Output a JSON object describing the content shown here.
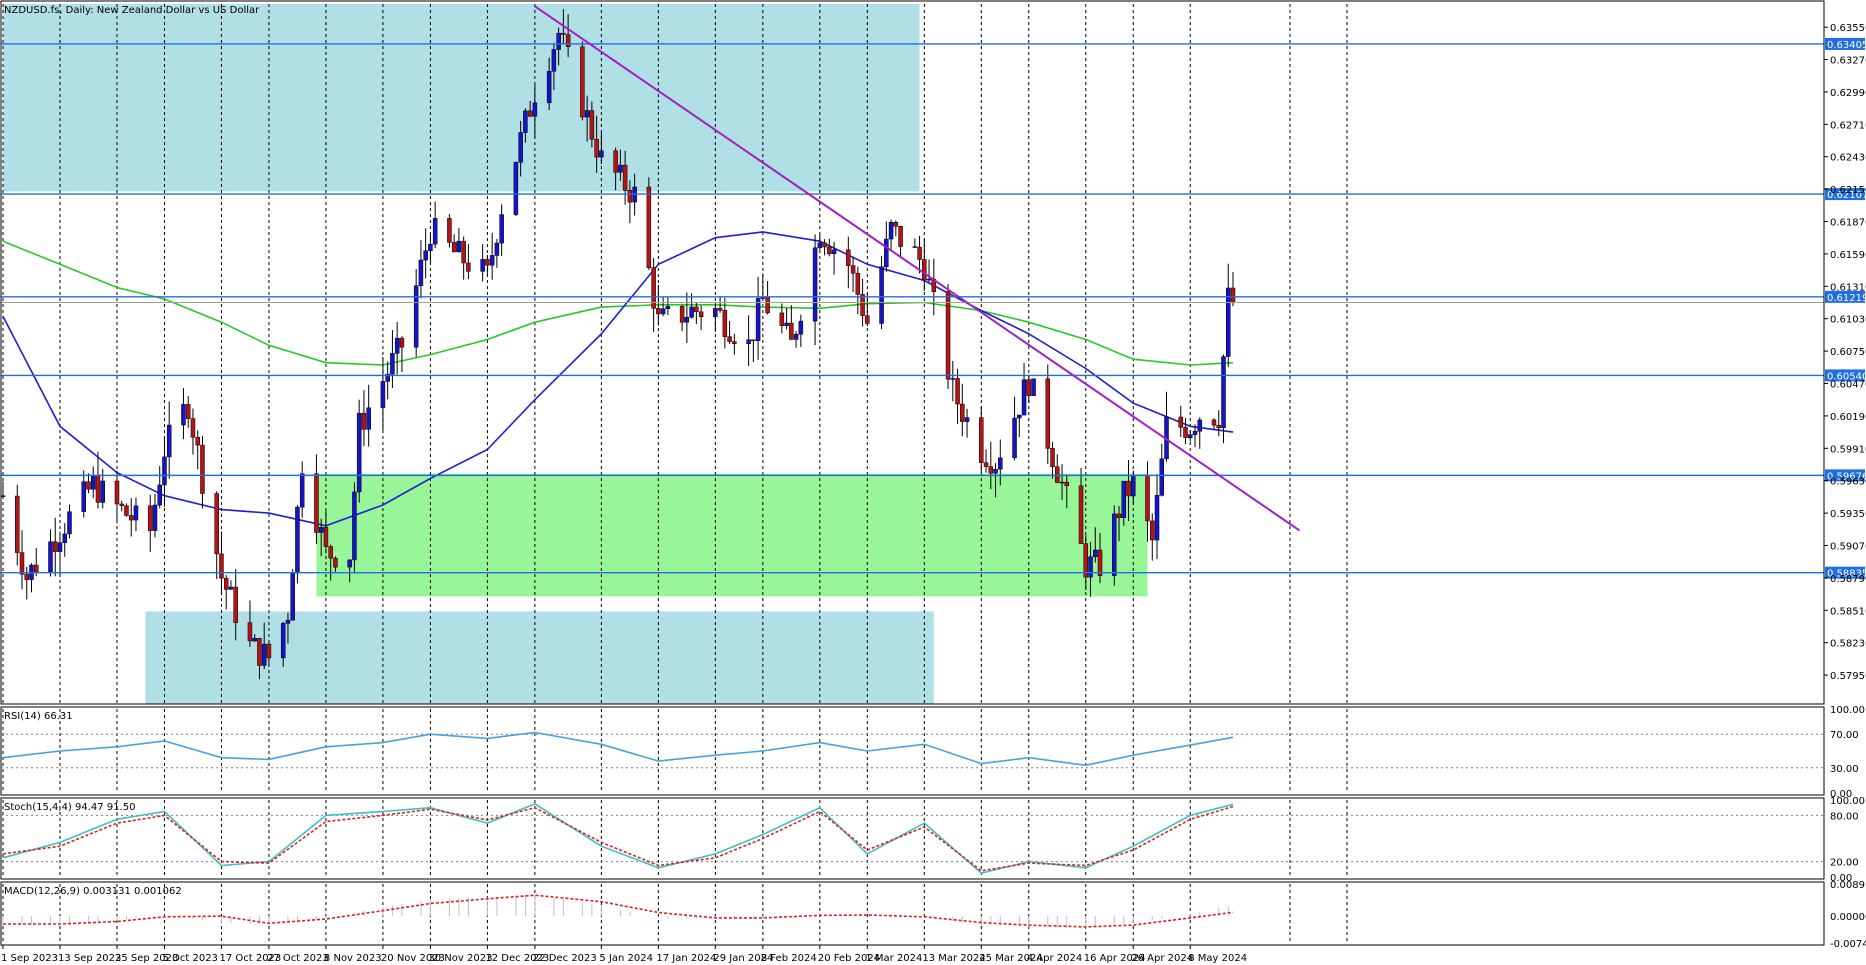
{
  "window": {
    "title": "NZDUSD.fs, Daily:  New Zealand Dollar vs US Dollar"
  },
  "colors": {
    "bull_candle": "#1414c8",
    "bear_candle": "#b41414",
    "ma_fast": "#1e1ed2",
    "ma_slow": "#28c828",
    "trendline": "#a020c8",
    "hline": "#1e6ee6",
    "supply_zone": "#b0dfe5",
    "demand_zone": "#98f598",
    "rsi_line": "#4aa0e0",
    "stoch_main": "#3cc0c8",
    "stoch_signal": "#e02020",
    "macd_hist": "#c0c0c0",
    "macd_signal": "#e02020",
    "tag_bg": "#1e6ee6",
    "current_price_line": "#a0a0a0"
  },
  "price_axis": {
    "ticks": [
      "0.63550",
      "0.63270",
      "0.62990",
      "0.62710",
      "0.62430",
      "0.62150",
      "0.61870",
      "0.61590",
      "0.61310",
      "0.61030",
      "0.60750",
      "0.60470",
      "0.60190",
      "0.59910",
      "0.59630",
      "0.59350",
      "0.59070",
      "0.58790",
      "0.58510",
      "0.58230",
      "0.57950"
    ]
  },
  "horizontal_levels": {
    "tags": [
      "0.63405",
      "0.62107",
      "0.61219",
      "0.60540",
      "0.59676",
      "0.58835"
    ],
    "current_price": "0.61170"
  },
  "date_axis": {
    "labels": [
      "1 Sep 2023",
      "13 Sep 2023",
      "25 Sep 2023",
      "5 Oct 2023",
      "17 Oct 2023",
      "27 Oct 2023",
      "8 Nov 2023",
      "20 Nov 2023",
      "30 Nov 2023",
      "12 Dec 2023",
      "22 Dec 2023",
      "5 Jan 2024",
      "17 Jan 2024",
      "29 Jan 2024",
      "8 Feb 2024",
      "20 Feb 2024",
      "1 Mar 2024",
      "13 Mar 2024",
      "25 Mar 2024",
      "4 Apr 2024",
      "16 Apr 2024",
      "26 Apr 2024",
      "8 May 2024"
    ]
  },
  "rsi": {
    "label": "RSI(14) 66.31",
    "ticks": [
      "100.00",
      "70.00",
      "30.00",
      "0.00"
    ]
  },
  "stoch": {
    "label": "Stoch(15,4,4) 94.47 91.50",
    "ticks": [
      "100.00",
      "80.00",
      "20.00",
      "0.00"
    ]
  },
  "macd": {
    "label": "MACD(12,26,9) 0.003131 0.001062",
    "ticks": [
      "0.008919",
      "0.000000",
      "-0.007467"
    ]
  },
  "chart_data": {
    "type": "candlestick",
    "title": "NZDUSD.fs, Daily:  New Zealand Dollar vs US Dollar",
    "ylim": [
      0.577,
      0.6375
    ],
    "anchors": [
      [
        "1 Sep 2023",
        0.595
      ],
      [
        "6 Sep 2023",
        0.588
      ],
      [
        "13 Sep 2023",
        0.592
      ],
      [
        "20 Sep 2023",
        0.596
      ],
      [
        "25 Sep 2023",
        0.594
      ],
      [
        "2 Oct 2023",
        0.592
      ],
      [
        "5 Oct 2023",
        0.599
      ],
      [
        "10 Oct 2023",
        0.603
      ],
      [
        "17 Oct 2023",
        0.588
      ],
      [
        "23 Oct 2023",
        0.582
      ],
      [
        "27 Oct 2023",
        0.581
      ],
      [
        "31 Oct 2023",
        0.585
      ],
      [
        "3 Nov 2023",
        0.598
      ],
      [
        "8 Nov 2023",
        0.59
      ],
      [
        "13 Nov 2023",
        0.59
      ],
      [
        "15 Nov 2023",
        0.601
      ],
      [
        "20 Nov 2023",
        0.605
      ],
      [
        "24 Nov 2023",
        0.608
      ],
      [
        "30 Nov 2023",
        0.618
      ],
      [
        "5 Dec 2023",
        0.616
      ],
      [
        "12 Dec 2023",
        0.614
      ],
      [
        "15 Dec 2023",
        0.62
      ],
      [
        "22 Dec 2023",
        0.63
      ],
      [
        "27 Dec 2023",
        0.635
      ],
      [
        "5 Jan 2024",
        0.624
      ],
      [
        "12 Jan 2024",
        0.621
      ],
      [
        "17 Jan 2024",
        0.61
      ],
      [
        "24 Jan 2024",
        0.611
      ],
      [
        "29 Jan 2024",
        0.611
      ],
      [
        "5 Feb 2024",
        0.608
      ],
      [
        "8 Feb 2024",
        0.612
      ],
      [
        "14 Feb 2024",
        0.608
      ],
      [
        "20 Feb 2024",
        0.618
      ],
      [
        "26 Feb 2024",
        0.615
      ],
      [
        "1 Mar 2024",
        0.61
      ],
      [
        "6 Mar 2024",
        0.618
      ],
      [
        "13 Mar 2024",
        0.615
      ],
      [
        "19 Mar 2024",
        0.604
      ],
      [
        "25 Mar 2024",
        0.599
      ],
      [
        "28 Mar 2024",
        0.598
      ],
      [
        "4 Apr 2024",
        0.605
      ],
      [
        "11 Apr 2024",
        0.596
      ],
      [
        "16 Apr 2024",
        0.589
      ],
      [
        "19 Apr 2024",
        0.589
      ],
      [
        "24 Apr 2024",
        0.595
      ],
      [
        "26 Apr 2024",
        0.596
      ],
      [
        "30 Apr 2024",
        0.591
      ],
      [
        "3 May 2024",
        0.601
      ],
      [
        "8 May 2024",
        0.601
      ],
      [
        "10 May 2024",
        0.602
      ],
      [
        "14 May 2024",
        0.602
      ],
      [
        "16 May 2024",
        0.612
      ],
      [
        "17 May 2024",
        0.6117
      ]
    ],
    "ma50": [
      [
        "1 Sep 2023",
        0.6105
      ],
      [
        "13 Sep 2023",
        0.601
      ],
      [
        "25 Sep 2023",
        0.597
      ],
      [
        "5 Oct 2023",
        0.595
      ],
      [
        "17 Oct 2023",
        0.5938
      ],
      [
        "27 Oct 2023",
        0.5935
      ],
      [
        "8 Nov 2023",
        0.5924
      ],
      [
        "20 Nov 2023",
        0.5942
      ],
      [
        "30 Nov 2023",
        0.5965
      ],
      [
        "12 Dec 2023",
        0.599
      ],
      [
        "22 Dec 2023",
        0.6033
      ],
      [
        "5 Jan 2024",
        0.609
      ],
      [
        "17 Jan 2024",
        0.615
      ],
      [
        "29 Jan 2024",
        0.6173
      ],
      [
        "8 Feb 2024",
        0.6178
      ],
      [
        "20 Feb 2024",
        0.617
      ],
      [
        "1 Mar 2024",
        0.615
      ],
      [
        "13 Mar 2024",
        0.6136
      ],
      [
        "25 Mar 2024",
        0.611
      ],
      [
        "4 Apr 2024",
        0.609
      ],
      [
        "16 Apr 2024",
        0.606
      ],
      [
        "26 Apr 2024",
        0.603
      ],
      [
        "8 May 2024",
        0.601
      ],
      [
        "17 May 2024",
        0.6005
      ]
    ],
    "ma200": [
      [
        "1 Sep 2023",
        0.617
      ],
      [
        "13 Sep 2023",
        0.615
      ],
      [
        "25 Sep 2023",
        0.613
      ],
      [
        "5 Oct 2023",
        0.612
      ],
      [
        "17 Oct 2023",
        0.61
      ],
      [
        "27 Oct 2023",
        0.608
      ],
      [
        "8 Nov 2023",
        0.6065
      ],
      [
        "20 Nov 2023",
        0.6063
      ],
      [
        "30 Nov 2023",
        0.6072
      ],
      [
        "12 Dec 2023",
        0.6085
      ],
      [
        "22 Dec 2023",
        0.61
      ],
      [
        "5 Jan 2024",
        0.6113
      ],
      [
        "17 Jan 2024",
        0.6115
      ],
      [
        "29 Jan 2024",
        0.6115
      ],
      [
        "8 Feb 2024",
        0.6113
      ],
      [
        "20 Feb 2024",
        0.6112
      ],
      [
        "1 Mar 2024",
        0.6116
      ],
      [
        "13 Mar 2024",
        0.6117
      ],
      [
        "25 Mar 2024",
        0.611
      ],
      [
        "4 Apr 2024",
        0.61
      ],
      [
        "16 Apr 2024",
        0.6085
      ],
      [
        "26 Apr 2024",
        0.6068
      ],
      [
        "8 May 2024",
        0.6063
      ],
      [
        "17 May 2024",
        0.6065
      ]
    ],
    "trendline": [
      [
        "22 Dec 2023",
        0.6373
      ],
      [
        "31 May 2024",
        0.592
      ]
    ],
    "supply_zones": [
      {
        "from": "1 Sep 2023",
        "to": "12 Mar 2024",
        "top": 0.6375,
        "bottom": 0.6213
      },
      {
        "from": "1 Oct 2023",
        "to": "15 Mar 2024",
        "top": 0.585,
        "bottom": 0.577
      }
    ],
    "demand_zones": [
      {
        "from": "6 Nov 2023",
        "to": "29 Apr 2024",
        "top": 0.5969,
        "bottom": 0.5863
      }
    ],
    "levels": [
      0.63405,
      0.62107,
      0.61219,
      0.6054,
      0.59676,
      0.58835
    ],
    "rsi": {
      "ylim": [
        0,
        100
      ],
      "levels": [
        70,
        30
      ],
      "anchors": [
        [
          "1 Sep 2023",
          42
        ],
        [
          "13 Sep 2023",
          50
        ],
        [
          "25 Sep 2023",
          55
        ],
        [
          "5 Oct 2023",
          62
        ],
        [
          "17 Oct 2023",
          42
        ],
        [
          "27 Oct 2023",
          40
        ],
        [
          "8 Nov 2023",
          55
        ],
        [
          "20 Nov 2023",
          60
        ],
        [
          "30 Nov 2023",
          70
        ],
        [
          "12 Dec 2023",
          65
        ],
        [
          "22 Dec 2023",
          72
        ],
        [
          "5 Jan 2024",
          58
        ],
        [
          "17 Jan 2024",
          38
        ],
        [
          "29 Jan 2024",
          45
        ],
        [
          "8 Feb 2024",
          50
        ],
        [
          "20 Feb 2024",
          60
        ],
        [
          "1 Mar 2024",
          50
        ],
        [
          "13 Mar 2024",
          58
        ],
        [
          "25 Mar 2024",
          35
        ],
        [
          "4 Apr 2024",
          42
        ],
        [
          "16 Apr 2024",
          33
        ],
        [
          "26 Apr 2024",
          45
        ],
        [
          "8 May 2024",
          57
        ],
        [
          "17 May 2024",
          66.31
        ]
      ]
    },
    "stoch": {
      "ylim": [
        0,
        100
      ],
      "levels": [
        80,
        20
      ],
      "main": [
        [
          "1 Sep 2023",
          25
        ],
        [
          "13 Sep 2023",
          45
        ],
        [
          "25 Sep 2023",
          75
        ],
        [
          "5 Oct 2023",
          85
        ],
        [
          "17 Oct 2023",
          15
        ],
        [
          "27 Oct 2023",
          20
        ],
        [
          "8 Nov 2023",
          80
        ],
        [
          "20 Nov 2023",
          85
        ],
        [
          "30 Nov 2023",
          90
        ],
        [
          "12 Dec 2023",
          70
        ],
        [
          "22 Dec 2023",
          95
        ],
        [
          "5 Jan 2024",
          40
        ],
        [
          "17 Jan 2024",
          12
        ],
        [
          "29 Jan 2024",
          30
        ],
        [
          "8 Feb 2024",
          55
        ],
        [
          "20 Feb 2024",
          90
        ],
        [
          "1 Mar 2024",
          30
        ],
        [
          "13 Mar 2024",
          70
        ],
        [
          "25 Mar 2024",
          5
        ],
        [
          "4 Apr 2024",
          20
        ],
        [
          "16 Apr 2024",
          12
        ],
        [
          "26 Apr 2024",
          40
        ],
        [
          "8 May 2024",
          80
        ],
        [
          "17 May 2024",
          94.47
        ]
      ],
      "signal": [
        [
          "1 Sep 2023",
          30
        ],
        [
          "13 Sep 2023",
          40
        ],
        [
          "25 Sep 2023",
          70
        ],
        [
          "5 Oct 2023",
          80
        ],
        [
          "17 Oct 2023",
          20
        ],
        [
          "27 Oct 2023",
          18
        ],
        [
          "8 Nov 2023",
          72
        ],
        [
          "20 Nov 2023",
          80
        ],
        [
          "30 Nov 2023",
          88
        ],
        [
          "12 Dec 2023",
          74
        ],
        [
          "22 Dec 2023",
          90
        ],
        [
          "5 Jan 2024",
          45
        ],
        [
          "17 Jan 2024",
          15
        ],
        [
          "29 Jan 2024",
          25
        ],
        [
          "8 Feb 2024",
          50
        ],
        [
          "20 Feb 2024",
          85
        ],
        [
          "1 Mar 2024",
          35
        ],
        [
          "13 Mar 2024",
          65
        ],
        [
          "25 Mar 2024",
          8
        ],
        [
          "4 Apr 2024",
          18
        ],
        [
          "16 Apr 2024",
          15
        ],
        [
          "26 Apr 2024",
          35
        ],
        [
          "8 May 2024",
          75
        ],
        [
          "17 May 2024",
          91.5
        ]
      ]
    },
    "macd": {
      "ylim": [
        -0.007467,
        0.008919
      ],
      "hist": [
        [
          "1 Sep 2023",
          -0.0025
        ],
        [
          "13 Sep 2023",
          -0.0022
        ],
        [
          "25 Sep 2023",
          -0.0012
        ],
        [
          "5 Oct 2023",
          0.0002
        ],
        [
          "17 Oct 2023",
          -0.0018
        ],
        [
          "27 Oct 2023",
          -0.0025
        ],
        [
          "8 Nov 2023",
          -0.0005
        ],
        [
          "20 Nov 2023",
          0.0025
        ],
        [
          "30 Nov 2023",
          0.0048
        ],
        [
          "12 Dec 2023",
          0.0052
        ],
        [
          "22 Dec 2023",
          0.006
        ],
        [
          "5 Jan 2024",
          0.003
        ],
        [
          "17 Jan 2024",
          -0.0005
        ],
        [
          "29 Jan 2024",
          -0.0008
        ],
        [
          "8 Feb 2024",
          -0.0008
        ],
        [
          "20 Feb 2024",
          0.0005
        ],
        [
          "1 Mar 2024",
          0.0
        ],
        [
          "13 Mar 2024",
          -0.0002
        ],
        [
          "25 Mar 2024",
          -0.0025
        ],
        [
          "4 Apr 2024",
          -0.003
        ],
        [
          "16 Apr 2024",
          -0.0035
        ],
        [
          "26 Apr 2024",
          -0.0018
        ],
        [
          "8 May 2024",
          0.0005
        ],
        [
          "17 May 2024",
          0.003131
        ]
      ],
      "signal": [
        [
          "1 Sep 2023",
          -0.0022
        ],
        [
          "13 Sep 2023",
          -0.0022
        ],
        [
          "25 Sep 2023",
          -0.0015
        ],
        [
          "5 Oct 2023",
          -0.0002
        ],
        [
          "17 Oct 2023",
          0.0
        ],
        [
          "27 Oct 2023",
          -0.002
        ],
        [
          "8 Nov 2023",
          -0.0008
        ],
        [
          "20 Nov 2023",
          0.0015
        ],
        [
          "30 Nov 2023",
          0.0035
        ],
        [
          "12 Dec 2023",
          0.0048
        ],
        [
          "22 Dec 2023",
          0.0058
        ],
        [
          "5 Jan 2024",
          0.004
        ],
        [
          "17 Jan 2024",
          0.001
        ],
        [
          "29 Jan 2024",
          -0.0005
        ],
        [
          "8 Feb 2024",
          -0.0005
        ],
        [
          "20 Feb 2024",
          0.0002
        ],
        [
          "1 Mar 2024",
          0.0003
        ],
        [
          "13 Mar 2024",
          -0.0002
        ],
        [
          "25 Mar 2024",
          -0.0018
        ],
        [
          "4 Apr 2024",
          -0.0025
        ],
        [
          "16 Apr 2024",
          -0.003
        ],
        [
          "26 Apr 2024",
          -0.0025
        ],
        [
          "8 May 2024",
          -0.0005
        ],
        [
          "17 May 2024",
          0.001062
        ]
      ]
    }
  }
}
